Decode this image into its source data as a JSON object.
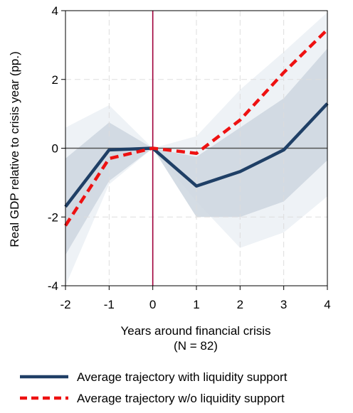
{
  "chart_data": {
    "type": "line",
    "title": "",
    "xlabel": "Years around financial crisis",
    "xlabel_note": "(N = 82)",
    "ylabel": "Real GDP relative to crisis year (pp.)",
    "x": [
      -2,
      -1,
      0,
      1,
      2,
      3,
      4
    ],
    "xlim": [
      -2,
      4
    ],
    "ylim": [
      -4,
      4
    ],
    "xticks": [
      "-2",
      "-1",
      "0",
      "1",
      "2",
      "3",
      "4"
    ],
    "yticks": [
      "-4",
      "-2",
      "0",
      "2",
      "4"
    ],
    "grid": true,
    "legend_position": "bottom",
    "reference_lines": {
      "horizontal_y": 0,
      "vertical_x": 0
    },
    "series": [
      {
        "name": "Average trajectory with liquidity support",
        "values": [
          -1.7,
          -0.05,
          0.0,
          -1.1,
          -0.68,
          -0.05,
          1.3
        ],
        "color": "#1f3f66",
        "style": "solid",
        "band": {
          "lower": [
            -3.1,
            -0.95,
            0.0,
            -2.0,
            -2.0,
            -1.55,
            -0.35
          ],
          "upper": [
            -0.3,
            0.75,
            0.0,
            -0.25,
            0.6,
            1.45,
            2.9
          ],
          "color": "#cdd6df"
        }
      },
      {
        "name": "Average trajectory w/o liquidity support",
        "values": [
          -2.25,
          -0.3,
          0.0,
          -0.15,
          0.82,
          2.2,
          3.45
        ],
        "color": "#ee1111",
        "style": "dashed",
        "band": {
          "lower": [
            -4.0,
            -1.05,
            0.0,
            -1.55,
            -2.9,
            -2.45,
            -1.4
          ],
          "upper": [
            0.6,
            1.25,
            0.0,
            0.35,
            1.7,
            2.8,
            3.95
          ],
          "color": "#eef2f6"
        }
      }
    ]
  },
  "colors": {
    "zero_line": "#555555",
    "crisis_line": "#a0003a",
    "grid": "#dddddd"
  }
}
